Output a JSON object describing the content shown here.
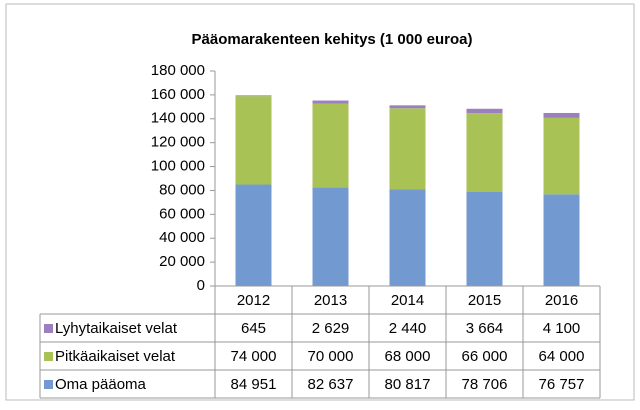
{
  "chart_data": {
    "type": "stacked_bar",
    "title": "Pääomarakenteen kehitys (1 000 euroa)",
    "categories": [
      "2012",
      "2013",
      "2014",
      "2015",
      "2016"
    ],
    "series": [
      {
        "name": "Oma pääoma",
        "color": "#7399d1",
        "values": [
          84951,
          82637,
          80817,
          78706,
          76757
        ],
        "value_labels": [
          "84 951",
          "82 637",
          "80 817",
          "78 706",
          "76 757"
        ]
      },
      {
        "name": "Pitkäaikaiset velat",
        "color": "#a8c256",
        "values": [
          74000,
          70000,
          68000,
          66000,
          64000
        ],
        "value_labels": [
          "74 000",
          "70 000",
          "68 000",
          "66 000",
          "64 000"
        ]
      },
      {
        "name": "Lyhytaikaiset velat",
        "color": "#9b7fbf",
        "values": [
          645,
          2629,
          2440,
          3664,
          4100
        ],
        "value_labels": [
          "645",
          "2 629",
          "2 440",
          "3 664",
          "4 100"
        ]
      }
    ],
    "ylim": [
      0,
      180000
    ],
    "yticks": [
      0,
      {
        "value": 20000,
        "label": "20 000"
      },
      {
        "value": 40000,
        "label": "40 000"
      },
      {
        "value": 60000,
        "label": "60 000"
      },
      {
        "value": 80000,
        "label": "80 000"
      },
      {
        "value": 100000,
        "label": "100 000"
      },
      {
        "value": 120000,
        "label": "120 000"
      },
      {
        "value": 140000,
        "label": "140 000"
      },
      {
        "value": 160000,
        "label": "160 000"
      },
      {
        "value": 180000,
        "label": "180 000"
      }
    ],
    "grid": false,
    "legend": "table"
  }
}
